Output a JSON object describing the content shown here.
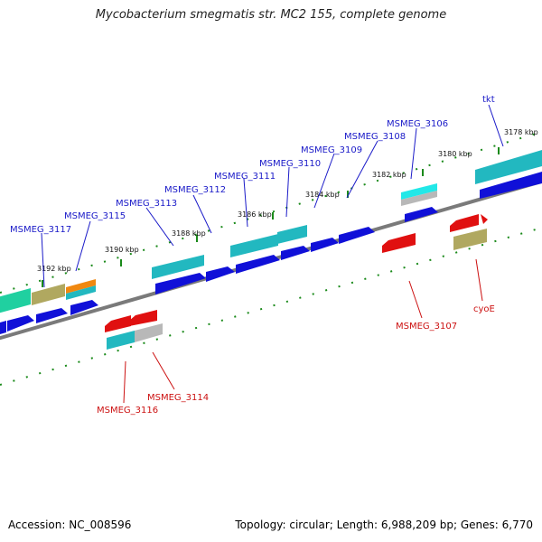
{
  "title": "Mycobacterium smegmatis str. MC2 155, complete genome",
  "footer": {
    "accession": "Accession: NC_008596",
    "info": "Topology: circular; Length: 6,988,209 bp; Genes: 6,770"
  },
  "colors": {
    "forward_label": "#1a1ac8",
    "reverse_label": "#cc1111",
    "backbone": "#7a7a7a",
    "tick": "#1a8a1a",
    "cds_blue": "#1010d8",
    "cds_cyan": "#22b8c0",
    "cds_red": "#e01010",
    "cds_olive": "#b0a860",
    "cds_grey": "#b8b8b8",
    "cds_orange": "#f08810",
    "cds_green": "#20d0a0"
  },
  "scale_labels": [
    "3192 kbp",
    "3190 kbp",
    "3188 kbp",
    "3186 kbp",
    "3184 kbp",
    "3182 kbp",
    "3180 kbp",
    "3178 kbp"
  ],
  "forward_labels": [
    "MSMEG_3117",
    "MSMEG_3115",
    "MSMEG_3113",
    "MSMEG_3112",
    "MSMEG_3111",
    "MSMEG_3110",
    "MSMEG_3109",
    "MSMEG_3108",
    "MSMEG_3106",
    "tkt"
  ],
  "reverse_labels": [
    "MSMEG_3116",
    "MSMEG_3114",
    "MSMEG_3107",
    "cyoE"
  ]
}
